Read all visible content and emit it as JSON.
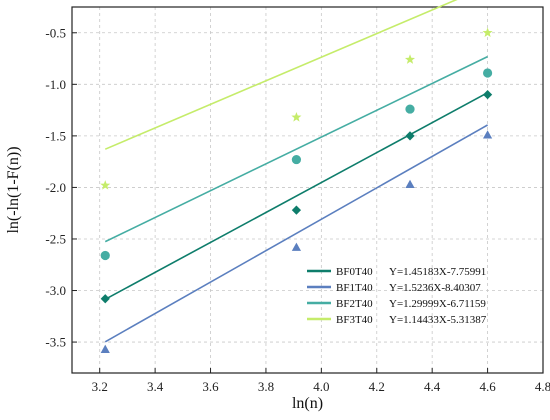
{
  "chart_data": {
    "type": "scatter",
    "title": "",
    "xlabel": "ln(n)",
    "ylabel": "ln(-ln(1-F(n))",
    "xlim": [
      3.1,
      4.8
    ],
    "ylim": [
      -3.8,
      -0.25
    ],
    "x_ticks": [
      "3.2",
      "3.4",
      "3.6",
      "3.8",
      "4.0",
      "4.2",
      "4.4",
      "4.6",
      "4.8"
    ],
    "y_ticks": [
      "-0.5",
      "-1.0",
      "-1.5",
      "-2.0",
      "-2.5",
      "-3.0",
      "-3.5"
    ],
    "x_tick_values": [
      3.2,
      3.4,
      3.6,
      3.8,
      4.0,
      4.2,
      4.4,
      4.6,
      4.8
    ],
    "y_tick_values": [
      -0.5,
      -1.0,
      -1.5,
      -2.0,
      -2.5,
      -3.0,
      -3.5
    ],
    "grid": true,
    "legend_position": "lower-right",
    "series": [
      {
        "name": "BF0T40",
        "equation": "Y=1.45183X-7.75991",
        "color": "#0e7d6b",
        "marker": "diamond",
        "slope": 1.45183,
        "intercept": -7.75991,
        "fit_x": [
          3.22,
          4.6
        ],
        "x": [
          3.22,
          3.91,
          4.32,
          4.6
        ],
        "y": [
          -3.08,
          -2.22,
          -1.5,
          -1.1
        ]
      },
      {
        "name": "BF1T40",
        "equation": "Y=1.5236X-8.40307",
        "color": "#5b7fbf",
        "marker": "triangle",
        "slope": 1.5236,
        "intercept": -8.40307,
        "fit_x": [
          3.22,
          4.6
        ],
        "x": [
          3.22,
          3.91,
          4.32,
          4.6
        ],
        "y": [
          -3.57,
          -2.58,
          -1.97,
          -1.49
        ]
      },
      {
        "name": "BF2T40",
        "equation": "Y=1.29999X-6.71159",
        "color": "#45ada3",
        "marker": "circle",
        "slope": 1.29999,
        "intercept": -6.71159,
        "fit_x": [
          3.22,
          4.6
        ],
        "x": [
          3.22,
          3.91,
          4.32,
          4.6
        ],
        "y": [
          -2.66,
          -1.73,
          -1.24,
          -0.89
        ]
      },
      {
        "name": "BF3T40",
        "equation": "Y=1.14433X-5.31387",
        "color": "#c5ec6a",
        "marker": "star",
        "slope": 1.14433,
        "intercept": -5.31387,
        "fit_x": [
          3.22,
          4.6
        ],
        "x": [
          3.22,
          3.91,
          4.32,
          4.6
        ],
        "y": [
          -1.98,
          -1.32,
          -0.76,
          -0.5
        ]
      }
    ]
  }
}
